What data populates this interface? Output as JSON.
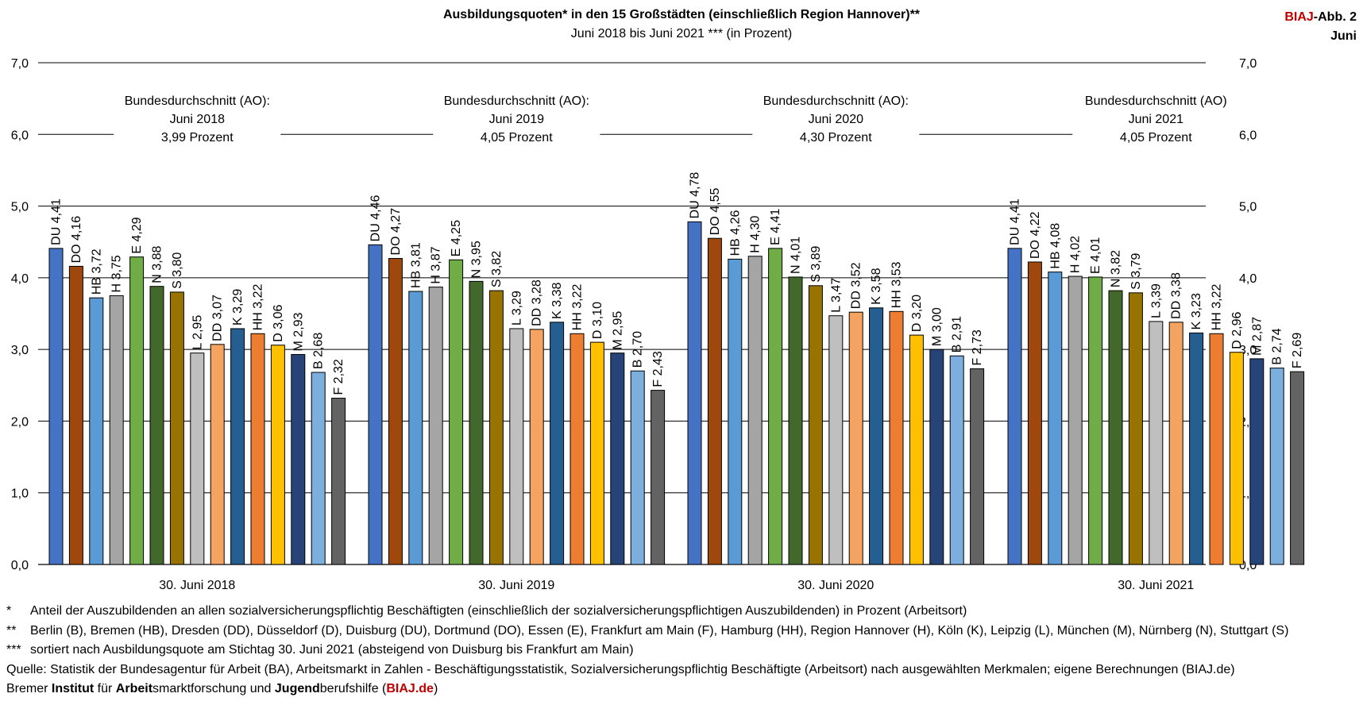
{
  "header": {
    "title": "Ausbildungsquoten* in den 15 Großstädten (einschließlich Region Hannover)**",
    "subtitle": "Juni 2018 bis Juni 2021 *** (in Prozent)",
    "badge_brand": "BIAJ",
    "badge_rest": "-Abb. 2",
    "badge_line2": "Juni"
  },
  "colors": {
    "DU": "#4472c4",
    "DO": "#9e480e",
    "HB": "#5b9bd5",
    "H": "#a5a5a5",
    "E": "#70ad47",
    "N": "#43682b",
    "S": "#997300",
    "L": "#bfbfbf",
    "DD": "#f4a460",
    "K": "#255e91",
    "HH": "#ed7d31",
    "D": "#ffc000",
    "M": "#264478",
    "B": "#7cafdd",
    "F": "#636363"
  },
  "chart_data": {
    "type": "bar",
    "ylim": [
      0,
      7
    ],
    "yticks": [
      "0,0",
      "1,0",
      "2,0",
      "3,0",
      "4,0",
      "5,0",
      "6,0",
      "7,0"
    ],
    "city_order": [
      "DU",
      "DO",
      "HB",
      "H",
      "E",
      "N",
      "S",
      "L",
      "DD",
      "K",
      "HH",
      "D",
      "M",
      "B",
      "F"
    ],
    "groups": [
      {
        "label": "30. Juni 2018",
        "average_lines": [
          "Bundesdurchschnitt (AO):",
          "Juni 2018",
          "3,99   Prozent"
        ],
        "bars": [
          {
            "city": "DU",
            "value": 4.41,
            "label": "4,41"
          },
          {
            "city": "DO",
            "value": 4.16,
            "label": "4,16"
          },
          {
            "city": "HB",
            "value": 3.72,
            "label": "3,72"
          },
          {
            "city": "H",
            "value": 3.75,
            "label": "3,75"
          },
          {
            "city": "E",
            "value": 4.29,
            "label": "4,29"
          },
          {
            "city": "N",
            "value": 3.88,
            "label": "3,88"
          },
          {
            "city": "S",
            "value": 3.8,
            "label": "3,80"
          },
          {
            "city": "L",
            "value": 2.95,
            "label": "2,95"
          },
          {
            "city": "DD",
            "value": 3.07,
            "label": "3,07"
          },
          {
            "city": "K",
            "value": 3.29,
            "label": "3,29"
          },
          {
            "city": "HH",
            "value": 3.22,
            "label": "3,22"
          },
          {
            "city": "D",
            "value": 3.06,
            "label": "3,06"
          },
          {
            "city": "M",
            "value": 2.93,
            "label": "2,93"
          },
          {
            "city": "B",
            "value": 2.68,
            "label": "2,68"
          },
          {
            "city": "F",
            "value": 2.32,
            "label": "2,32"
          }
        ]
      },
      {
        "label": "30. Juni 2019",
        "average_lines": [
          "Bundesdurchschnitt (AO):",
          "Juni 2019",
          "4,05   Prozent"
        ],
        "bars": [
          {
            "city": "DU",
            "value": 4.46,
            "label": "4,46"
          },
          {
            "city": "DO",
            "value": 4.27,
            "label": "4,27"
          },
          {
            "city": "HB",
            "value": 3.81,
            "label": "3,81"
          },
          {
            "city": "H",
            "value": 3.87,
            "label": "3,87"
          },
          {
            "city": "E",
            "value": 4.25,
            "label": "4,25"
          },
          {
            "city": "N",
            "value": 3.95,
            "label": "3,95"
          },
          {
            "city": "S",
            "value": 3.82,
            "label": "3,82"
          },
          {
            "city": "L",
            "value": 3.29,
            "label": "3,29"
          },
          {
            "city": "DD",
            "value": 3.28,
            "label": "3,28"
          },
          {
            "city": "K",
            "value": 3.38,
            "label": "3,38"
          },
          {
            "city": "HH",
            "value": 3.22,
            "label": "3,22"
          },
          {
            "city": "D",
            "value": 3.1,
            "label": "3,10"
          },
          {
            "city": "M",
            "value": 2.95,
            "label": "2,95"
          },
          {
            "city": "B",
            "value": 2.7,
            "label": "2,70"
          },
          {
            "city": "F",
            "value": 2.43,
            "label": "2,43"
          }
        ]
      },
      {
        "label": "30. Juni 2020",
        "average_lines": [
          "Bundesdurchschnitt (AO):",
          "Juni 2020",
          "4,30   Prozent"
        ],
        "bars": [
          {
            "city": "DU",
            "value": 4.78,
            "label": "4,78"
          },
          {
            "city": "DO",
            "value": 4.55,
            "label": "4,55"
          },
          {
            "city": "HB",
            "value": 4.26,
            "label": "4,26"
          },
          {
            "city": "H",
            "value": 4.3,
            "label": "4,30"
          },
          {
            "city": "E",
            "value": 4.41,
            "label": "4,41"
          },
          {
            "city": "N",
            "value": 4.01,
            "label": "4,01"
          },
          {
            "city": "S",
            "value": 3.89,
            "label": "3,89"
          },
          {
            "city": "L",
            "value": 3.47,
            "label": "3,47"
          },
          {
            "city": "DD",
            "value": 3.52,
            "label": "3,52"
          },
          {
            "city": "K",
            "value": 3.58,
            "label": "3,58"
          },
          {
            "city": "HH",
            "value": 3.53,
            "label": "3,53"
          },
          {
            "city": "D",
            "value": 3.2,
            "label": "3,20"
          },
          {
            "city": "M",
            "value": 3.0,
            "label": "3,00"
          },
          {
            "city": "B",
            "value": 2.91,
            "label": "2,91"
          },
          {
            "city": "F",
            "value": 2.73,
            "label": "2,73"
          }
        ]
      },
      {
        "label": "30. Juni 2021",
        "average_lines": [
          "Bundesdurchschnitt (AO)",
          "Juni 2021",
          "4,05   Prozent"
        ],
        "bars": [
          {
            "city": "DU",
            "value": 4.41,
            "label": "4,41"
          },
          {
            "city": "DO",
            "value": 4.22,
            "label": "4,22"
          },
          {
            "city": "HB",
            "value": 4.08,
            "label": "4,08"
          },
          {
            "city": "H",
            "value": 4.02,
            "label": "4,02"
          },
          {
            "city": "E",
            "value": 4.01,
            "label": "4,01"
          },
          {
            "city": "N",
            "value": 3.82,
            "label": "3,82"
          },
          {
            "city": "S",
            "value": 3.79,
            "label": "3,79"
          },
          {
            "city": "L",
            "value": 3.39,
            "label": "3,39"
          },
          {
            "city": "DD",
            "value": 3.38,
            "label": "3,38"
          },
          {
            "city": "K",
            "value": 3.23,
            "label": "3,23"
          },
          {
            "city": "HH",
            "value": 3.22,
            "label": "3,22"
          },
          {
            "city": "D",
            "value": 2.96,
            "label": "2,96"
          },
          {
            "city": "M",
            "value": 2.87,
            "label": "2,87"
          },
          {
            "city": "B",
            "value": 2.74,
            "label": "2,74"
          },
          {
            "city": "F",
            "value": 2.69,
            "label": "2,69"
          }
        ]
      }
    ]
  },
  "notes": {
    "n1_mark": "*",
    "n1": "Anteil der Auszubildenden an allen sozialversicherungspflichtig Beschäftigten (einschließlich der sozialversicherungspflichtigen Auszubildenden) in Prozent (Arbeitsort)",
    "n2_mark": "**",
    "n2": "Berlin (B), Bremen (HB), Dresden (DD), Düsseldorf (D), Duisburg (DU), Dortmund (DO), Essen (E), Frankfurt am Main (F), Hamburg (HH), Region Hannover (H), Köln (K), Leipzig (L), München (M), Nürnberg (N), Stuttgart (S)",
    "n3_mark": "***",
    "n3": "sortiert nach Ausbildungsquote am Stichtag 30. Juni 2021 (absteigend von Duisburg bis Frankfurt am Main)",
    "source": "Quelle: Statistik der Bundesagentur für Arbeit (BA), Arbeitsmarkt in Zahlen - Beschäftigungsstatistik, Sozialversicherungspflichtig Beschäftigte (Arbeitsort) nach ausgewählten Merkmalen; eigene Berechnungen (BIAJ.de)",
    "org_1": "Bremer ",
    "org_2": "Institut",
    "org_3": " für ",
    "org_4": "Arbeit",
    "org_5": "smarktforschung und ",
    "org_6": "Jugend",
    "org_7": "berufshilfe (",
    "org_8": "BIAJ.de",
    "org_9": ")"
  }
}
